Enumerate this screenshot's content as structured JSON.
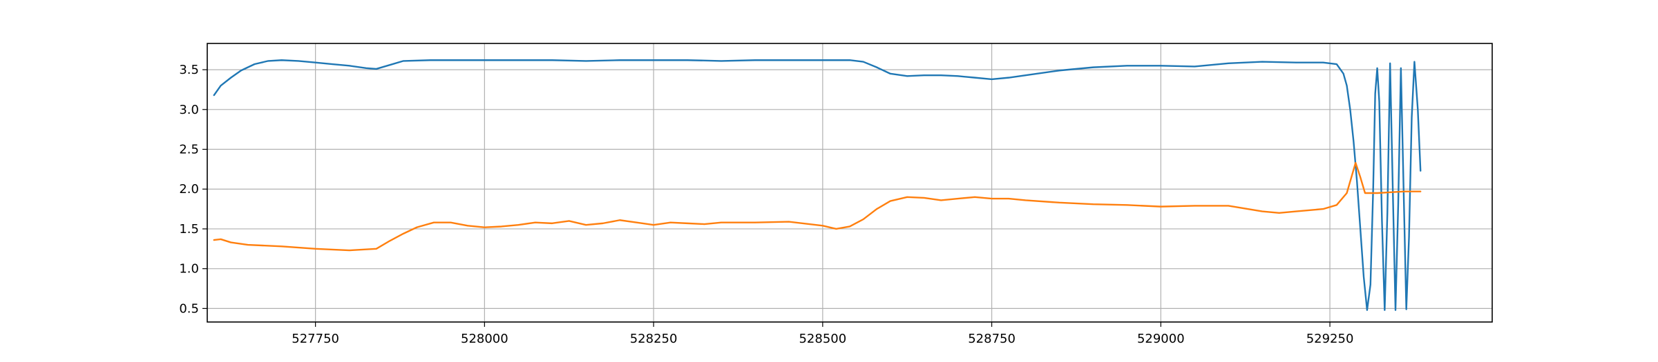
{
  "chart_data": {
    "type": "line",
    "title": "",
    "xlabel": "",
    "ylabel": "",
    "xlim": [
      527590,
      529490
    ],
    "ylim": [
      0.33,
      3.83
    ],
    "grid": true,
    "x_ticks": [
      {
        "value": 527750,
        "label": "527750"
      },
      {
        "value": 528000,
        "label": "528000"
      },
      {
        "value": 528250,
        "label": "528250"
      },
      {
        "value": 528500,
        "label": "528500"
      },
      {
        "value": 528750,
        "label": "528750"
      },
      {
        "value": 529000,
        "label": "529000"
      },
      {
        "value": 529250,
        "label": "529250"
      }
    ],
    "y_ticks": [
      {
        "value": 0.5,
        "label": "0.5"
      },
      {
        "value": 1.0,
        "label": "1.0"
      },
      {
        "value": 1.5,
        "label": "1.5"
      },
      {
        "value": 2.0,
        "label": "2.0"
      },
      {
        "value": 2.5,
        "label": "2.5"
      },
      {
        "value": 3.0,
        "label": "3.0"
      },
      {
        "value": 3.5,
        "label": "3.5"
      }
    ],
    "series": [
      {
        "color": "#1f77b4",
        "points": [
          [
            527600,
            3.18
          ],
          [
            527610,
            3.3
          ],
          [
            527625,
            3.4
          ],
          [
            527640,
            3.49
          ],
          [
            527660,
            3.57
          ],
          [
            527680,
            3.61
          ],
          [
            527700,
            3.62
          ],
          [
            527725,
            3.61
          ],
          [
            527750,
            3.59
          ],
          [
            527775,
            3.57
          ],
          [
            527800,
            3.55
          ],
          [
            527825,
            3.52
          ],
          [
            527840,
            3.51
          ],
          [
            527860,
            3.56
          ],
          [
            527880,
            3.61
          ],
          [
            527920,
            3.62
          ],
          [
            527960,
            3.62
          ],
          [
            528000,
            3.62
          ],
          [
            528050,
            3.62
          ],
          [
            528100,
            3.62
          ],
          [
            528150,
            3.61
          ],
          [
            528200,
            3.62
          ],
          [
            528250,
            3.62
          ],
          [
            528300,
            3.62
          ],
          [
            528350,
            3.61
          ],
          [
            528400,
            3.62
          ],
          [
            528450,
            3.62
          ],
          [
            528500,
            3.62
          ],
          [
            528540,
            3.62
          ],
          [
            528560,
            3.6
          ],
          [
            528580,
            3.53
          ],
          [
            528600,
            3.45
          ],
          [
            528625,
            3.42
          ],
          [
            528650,
            3.43
          ],
          [
            528675,
            3.43
          ],
          [
            528700,
            3.42
          ],
          [
            528725,
            3.4
          ],
          [
            528750,
            3.38
          ],
          [
            528775,
            3.4
          ],
          [
            528800,
            3.43
          ],
          [
            528850,
            3.49
          ],
          [
            528900,
            3.53
          ],
          [
            528950,
            3.55
          ],
          [
            529000,
            3.55
          ],
          [
            529050,
            3.54
          ],
          [
            529100,
            3.58
          ],
          [
            529150,
            3.6
          ],
          [
            529200,
            3.59
          ],
          [
            529240,
            3.59
          ],
          [
            529260,
            3.57
          ],
          [
            529270,
            3.45
          ],
          [
            529275,
            3.3
          ],
          [
            529280,
            3.0
          ],
          [
            529285,
            2.6
          ],
          [
            529290,
            2.1
          ],
          [
            529295,
            1.5
          ],
          [
            529300,
            0.9
          ],
          [
            529305,
            0.48
          ],
          [
            529310,
            0.8
          ],
          [
            529314,
            2.0
          ],
          [
            529317,
            3.2
          ],
          [
            529320,
            3.52
          ],
          [
            529323,
            3.1
          ],
          [
            529327,
            1.6
          ],
          [
            529331,
            0.48
          ],
          [
            529335,
            1.7
          ],
          [
            529339,
            3.58
          ],
          [
            529343,
            2.0
          ],
          [
            529347,
            0.48
          ],
          [
            529351,
            1.8
          ],
          [
            529355,
            3.52
          ],
          [
            529359,
            2.0
          ],
          [
            529363,
            0.49
          ],
          [
            529367,
            1.4
          ],
          [
            529371,
            2.9
          ],
          [
            529375,
            3.6
          ],
          [
            529380,
            3.0
          ],
          [
            529384,
            2.23
          ]
        ]
      },
      {
        "color": "#ff7f0e",
        "points": [
          [
            527600,
            1.36
          ],
          [
            527610,
            1.37
          ],
          [
            527625,
            1.33
          ],
          [
            527650,
            1.3
          ],
          [
            527700,
            1.28
          ],
          [
            527750,
            1.25
          ],
          [
            527800,
            1.23
          ],
          [
            527840,
            1.25
          ],
          [
            527860,
            1.35
          ],
          [
            527880,
            1.44
          ],
          [
            527900,
            1.52
          ],
          [
            527925,
            1.58
          ],
          [
            527950,
            1.58
          ],
          [
            527975,
            1.54
          ],
          [
            528000,
            1.52
          ],
          [
            528025,
            1.53
          ],
          [
            528050,
            1.55
          ],
          [
            528075,
            1.58
          ],
          [
            528100,
            1.57
          ],
          [
            528125,
            1.6
          ],
          [
            528150,
            1.55
          ],
          [
            528175,
            1.57
          ],
          [
            528200,
            1.61
          ],
          [
            528225,
            1.58
          ],
          [
            528250,
            1.55
          ],
          [
            528275,
            1.58
          ],
          [
            528300,
            1.57
          ],
          [
            528325,
            1.56
          ],
          [
            528350,
            1.58
          ],
          [
            528400,
            1.58
          ],
          [
            528450,
            1.59
          ],
          [
            528500,
            1.54
          ],
          [
            528520,
            1.5
          ],
          [
            528540,
            1.53
          ],
          [
            528560,
            1.62
          ],
          [
            528580,
            1.75
          ],
          [
            528600,
            1.85
          ],
          [
            528625,
            1.9
          ],
          [
            528650,
            1.89
          ],
          [
            528675,
            1.86
          ],
          [
            528700,
            1.88
          ],
          [
            528725,
            1.9
          ],
          [
            528750,
            1.88
          ],
          [
            528775,
            1.88
          ],
          [
            528800,
            1.86
          ],
          [
            528850,
            1.83
          ],
          [
            528900,
            1.81
          ],
          [
            528950,
            1.8
          ],
          [
            529000,
            1.78
          ],
          [
            529050,
            1.79
          ],
          [
            529100,
            1.79
          ],
          [
            529150,
            1.72
          ],
          [
            529175,
            1.7
          ],
          [
            529200,
            1.72
          ],
          [
            529240,
            1.75
          ],
          [
            529260,
            1.8
          ],
          [
            529275,
            1.95
          ],
          [
            529288,
            2.33
          ],
          [
            529295,
            2.15
          ],
          [
            529302,
            1.95
          ],
          [
            529320,
            1.95
          ],
          [
            529340,
            1.96
          ],
          [
            529360,
            1.97
          ],
          [
            529384,
            1.97
          ]
        ]
      }
    ]
  }
}
